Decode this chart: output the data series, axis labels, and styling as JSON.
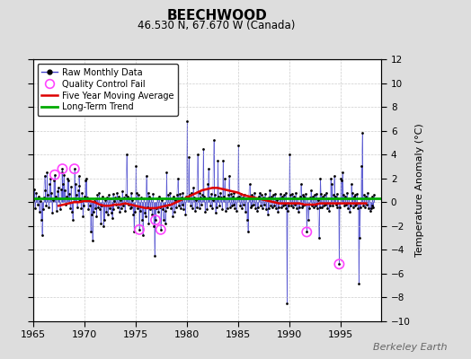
{
  "title": "BEECHWOOD",
  "subtitle": "46.530 N, 67.670 W (Canada)",
  "ylabel": "Temperature Anomaly (°C)",
  "watermark": "Berkeley Earth",
  "xlim": [
    1965,
    1999
  ],
  "ylim": [
    -10,
    12
  ],
  "yticks": [
    -10,
    -8,
    -6,
    -4,
    -2,
    0,
    2,
    4,
    6,
    8,
    10,
    12
  ],
  "xticks": [
    1965,
    1970,
    1975,
    1980,
    1985,
    1990,
    1995
  ],
  "bg_color": "#dddddd",
  "plot_bg_color": "#ffffff",
  "grid_color": "#cccccc",
  "line_color": "#4444cc",
  "ma_color": "#dd0000",
  "trend_color": "#00aa00",
  "dot_color": "#000000",
  "qc_color": "#ff44ff",
  "monthly_data": [
    [
      1965.042,
      0.2
    ],
    [
      1965.125,
      1.1
    ],
    [
      1965.208,
      -0.5
    ],
    [
      1965.292,
      0.8
    ],
    [
      1965.375,
      0.3
    ],
    [
      1965.458,
      -0.2
    ],
    [
      1965.542,
      0.5
    ],
    [
      1965.625,
      -0.8
    ],
    [
      1965.708,
      0.1
    ],
    [
      1965.792,
      -1.5
    ],
    [
      1965.875,
      -2.8
    ],
    [
      1965.958,
      -0.6
    ],
    [
      1966.042,
      0.4
    ],
    [
      1966.125,
      2.2
    ],
    [
      1966.208,
      1.0
    ],
    [
      1966.292,
      -0.3
    ],
    [
      1966.375,
      2.5
    ],
    [
      1966.458,
      0.6
    ],
    [
      1966.542,
      -0.4
    ],
    [
      1966.625,
      1.5
    ],
    [
      1966.708,
      2.0
    ],
    [
      1966.792,
      0.8
    ],
    [
      1966.875,
      -0.9
    ],
    [
      1966.958,
      0.2
    ],
    [
      1967.042,
      1.8
    ],
    [
      1967.125,
      2.3
    ],
    [
      1967.208,
      0.5
    ],
    [
      1967.292,
      -0.7
    ],
    [
      1967.375,
      0.9
    ],
    [
      1967.458,
      1.2
    ],
    [
      1967.542,
      0.3
    ],
    [
      1967.625,
      -0.6
    ],
    [
      1967.708,
      1.1
    ],
    [
      1967.792,
      2.5
    ],
    [
      1967.875,
      2.8
    ],
    [
      1967.958,
      1.5
    ],
    [
      1968.042,
      2.3
    ],
    [
      1968.125,
      1.0
    ],
    [
      1968.208,
      -0.2
    ],
    [
      1968.292,
      0.5
    ],
    [
      1968.375,
      2.0
    ],
    [
      1968.458,
      1.8
    ],
    [
      1968.542,
      0.7
    ],
    [
      1968.625,
      -0.5
    ],
    [
      1968.708,
      1.3
    ],
    [
      1968.792,
      -0.8
    ],
    [
      1968.875,
      -1.5
    ],
    [
      1968.958,
      0.3
    ],
    [
      1969.042,
      2.8
    ],
    [
      1969.125,
      1.5
    ],
    [
      1969.208,
      0.6
    ],
    [
      1969.292,
      -0.4
    ],
    [
      1969.375,
      1.0
    ],
    [
      1969.458,
      2.2
    ],
    [
      1969.542,
      1.4
    ],
    [
      1969.625,
      0.2
    ],
    [
      1969.708,
      -0.5
    ],
    [
      1969.792,
      0.8
    ],
    [
      1969.875,
      -1.2
    ],
    [
      1969.958,
      -0.3
    ],
    [
      1970.042,
      0.5
    ],
    [
      1970.125,
      1.8
    ],
    [
      1970.208,
      2.0
    ],
    [
      1970.292,
      0.4
    ],
    [
      1970.375,
      -0.6
    ],
    [
      1970.458,
      0.2
    ],
    [
      1970.542,
      -0.3
    ],
    [
      1970.625,
      -2.5
    ],
    [
      1970.708,
      -1.0
    ],
    [
      1970.792,
      -3.2
    ],
    [
      1970.875,
      -0.8
    ],
    [
      1970.958,
      0.1
    ],
    [
      1971.042,
      -0.5
    ],
    [
      1971.125,
      0.3
    ],
    [
      1971.208,
      -1.2
    ],
    [
      1971.292,
      0.6
    ],
    [
      1971.375,
      -0.4
    ],
    [
      1971.458,
      0.8
    ],
    [
      1971.542,
      -0.6
    ],
    [
      1971.625,
      -1.8
    ],
    [
      1971.708,
      -0.3
    ],
    [
      1971.792,
      0.5
    ],
    [
      1971.875,
      -2.0
    ],
    [
      1971.958,
      -1.5
    ],
    [
      1972.042,
      0.2
    ],
    [
      1972.125,
      -0.8
    ],
    [
      1972.208,
      0.4
    ],
    [
      1972.292,
      -1.0
    ],
    [
      1972.375,
      0.6
    ],
    [
      1972.458,
      -0.5
    ],
    [
      1972.542,
      0.3
    ],
    [
      1972.625,
      -0.9
    ],
    [
      1972.708,
      -1.3
    ],
    [
      1972.792,
      0.7
    ],
    [
      1972.875,
      -0.6
    ],
    [
      1972.958,
      0.1
    ],
    [
      1973.042,
      0.4
    ],
    [
      1973.125,
      -0.2
    ],
    [
      1973.208,
      0.8
    ],
    [
      1973.292,
      -0.4
    ],
    [
      1973.375,
      0.5
    ],
    [
      1973.458,
      -0.8
    ],
    [
      1973.542,
      0.2
    ],
    [
      1973.625,
      -0.5
    ],
    [
      1973.708,
      0.9
    ],
    [
      1973.792,
      -0.3
    ],
    [
      1973.875,
      0.4
    ],
    [
      1973.958,
      -0.7
    ],
    [
      1974.042,
      0.6
    ],
    [
      1974.125,
      4.0
    ],
    [
      1974.208,
      0.5
    ],
    [
      1974.292,
      -0.2
    ],
    [
      1974.375,
      0.3
    ],
    [
      1974.458,
      -0.5
    ],
    [
      1974.542,
      0.8
    ],
    [
      1974.625,
      -0.4
    ],
    [
      1974.708,
      0.2
    ],
    [
      1974.792,
      -1.0
    ],
    [
      1974.875,
      -2.5
    ],
    [
      1974.958,
      -0.8
    ],
    [
      1975.042,
      3.0
    ],
    [
      1975.125,
      0.8
    ],
    [
      1975.208,
      -0.5
    ],
    [
      1975.292,
      0.6
    ],
    [
      1975.375,
      -2.3
    ],
    [
      1975.458,
      -0.7
    ],
    [
      1975.542,
      0.4
    ],
    [
      1975.625,
      -1.5
    ],
    [
      1975.708,
      -2.8
    ],
    [
      1975.792,
      0.3
    ],
    [
      1975.875,
      -0.9
    ],
    [
      1975.958,
      -1.2
    ],
    [
      1976.042,
      2.2
    ],
    [
      1976.125,
      -0.4
    ],
    [
      1976.208,
      0.8
    ],
    [
      1976.292,
      -1.8
    ],
    [
      1976.375,
      0.5
    ],
    [
      1976.458,
      -0.6
    ],
    [
      1976.542,
      0.3
    ],
    [
      1976.625,
      -1.0
    ],
    [
      1976.708,
      0.7
    ],
    [
      1976.792,
      -2.0
    ],
    [
      1976.875,
      -4.5
    ],
    [
      1976.958,
      -1.5
    ],
    [
      1977.042,
      -0.5
    ],
    [
      1977.125,
      0.3
    ],
    [
      1977.208,
      -0.8
    ],
    [
      1977.292,
      0.5
    ],
    [
      1977.375,
      -0.4
    ],
    [
      1977.458,
      -2.3
    ],
    [
      1977.542,
      0.2
    ],
    [
      1977.625,
      -0.6
    ],
    [
      1977.708,
      -1.5
    ],
    [
      1977.792,
      -0.3
    ],
    [
      1977.875,
      -1.8
    ],
    [
      1977.958,
      -0.7
    ],
    [
      1978.042,
      2.5
    ],
    [
      1978.125,
      -0.4
    ],
    [
      1978.208,
      0.6
    ],
    [
      1978.292,
      -0.2
    ],
    [
      1978.375,
      0.8
    ],
    [
      1978.458,
      -0.5
    ],
    [
      1978.542,
      0.3
    ],
    [
      1978.625,
      -1.2
    ],
    [
      1978.708,
      0.5
    ],
    [
      1978.792,
      -0.8
    ],
    [
      1978.875,
      0.2
    ],
    [
      1978.958,
      -0.4
    ],
    [
      1979.042,
      0.6
    ],
    [
      1979.125,
      2.0
    ],
    [
      1979.208,
      -0.3
    ],
    [
      1979.292,
      0.7
    ],
    [
      1979.375,
      -0.5
    ],
    [
      1979.458,
      0.4
    ],
    [
      1979.542,
      -0.2
    ],
    [
      1979.625,
      0.8
    ],
    [
      1979.708,
      -0.6
    ],
    [
      1979.792,
      0.3
    ],
    [
      1979.875,
      -1.0
    ],
    [
      1979.958,
      0.5
    ],
    [
      1980.042,
      6.8
    ],
    [
      1980.125,
      0.5
    ],
    [
      1980.208,
      3.8
    ],
    [
      1980.292,
      0.6
    ],
    [
      1980.375,
      -0.3
    ],
    [
      1980.458,
      0.8
    ],
    [
      1980.542,
      -0.5
    ],
    [
      1980.625,
      1.2
    ],
    [
      1980.708,
      0.4
    ],
    [
      1980.792,
      -0.7
    ],
    [
      1980.875,
      0.2
    ],
    [
      1980.958,
      -0.4
    ],
    [
      1981.042,
      4.0
    ],
    [
      1981.125,
      0.3
    ],
    [
      1981.208,
      -0.5
    ],
    [
      1981.292,
      0.8
    ],
    [
      1981.375,
      0.4
    ],
    [
      1981.458,
      -0.2
    ],
    [
      1981.542,
      0.6
    ],
    [
      1981.625,
      4.5
    ],
    [
      1981.708,
      0.5
    ],
    [
      1981.792,
      -0.8
    ],
    [
      1981.875,
      0.3
    ],
    [
      1981.958,
      -0.6
    ],
    [
      1982.042,
      1.5
    ],
    [
      1982.125,
      2.8
    ],
    [
      1982.208,
      0.4
    ],
    [
      1982.292,
      -0.3
    ],
    [
      1982.375,
      0.7
    ],
    [
      1982.458,
      -0.5
    ],
    [
      1982.542,
      0.2
    ],
    [
      1982.625,
      5.2
    ],
    [
      1982.708,
      0.6
    ],
    [
      1982.792,
      -0.9
    ],
    [
      1982.875,
      0.3
    ],
    [
      1982.958,
      -0.4
    ],
    [
      1983.042,
      3.5
    ],
    [
      1983.125,
      0.5
    ],
    [
      1983.208,
      -0.3
    ],
    [
      1983.292,
      0.8
    ],
    [
      1983.375,
      0.4
    ],
    [
      1983.458,
      -0.6
    ],
    [
      1983.542,
      3.5
    ],
    [
      1983.625,
      0.5
    ],
    [
      1983.708,
      2.0
    ],
    [
      1983.792,
      -0.7
    ],
    [
      1983.875,
      0.3
    ],
    [
      1983.958,
      -0.5
    ],
    [
      1984.042,
      0.6
    ],
    [
      1984.125,
      2.2
    ],
    [
      1984.208,
      -0.4
    ],
    [
      1984.292,
      0.7
    ],
    [
      1984.375,
      -0.3
    ],
    [
      1984.458,
      0.5
    ],
    [
      1984.542,
      -0.2
    ],
    [
      1984.625,
      0.8
    ],
    [
      1984.708,
      -0.5
    ],
    [
      1984.792,
      0.3
    ],
    [
      1984.875,
      -0.7
    ],
    [
      1984.958,
      0.4
    ],
    [
      1985.042,
      4.8
    ],
    [
      1985.125,
      0.5
    ],
    [
      1985.208,
      -0.3
    ],
    [
      1985.292,
      0.7
    ],
    [
      1985.375,
      -0.5
    ],
    [
      1985.458,
      0.4
    ],
    [
      1985.542,
      -0.2
    ],
    [
      1985.625,
      0.6
    ],
    [
      1985.708,
      -0.8
    ],
    [
      1985.792,
      0.3
    ],
    [
      1985.875,
      -1.5
    ],
    [
      1985.958,
      -2.5
    ],
    [
      1986.042,
      0.5
    ],
    [
      1986.125,
      1.5
    ],
    [
      1986.208,
      -0.4
    ],
    [
      1986.292,
      0.6
    ],
    [
      1986.375,
      -0.3
    ],
    [
      1986.458,
      0.5
    ],
    [
      1986.542,
      -0.2
    ],
    [
      1986.625,
      0.8
    ],
    [
      1986.708,
      -0.5
    ],
    [
      1986.792,
      0.3
    ],
    [
      1986.875,
      -0.7
    ],
    [
      1986.958,
      -0.4
    ],
    [
      1987.042,
      0.5
    ],
    [
      1987.125,
      0.8
    ],
    [
      1987.208,
      -0.3
    ],
    [
      1987.292,
      0.6
    ],
    [
      1987.375,
      -0.5
    ],
    [
      1987.458,
      0.4
    ],
    [
      1987.542,
      -0.2
    ],
    [
      1987.625,
      0.7
    ],
    [
      1987.708,
      -0.6
    ],
    [
      1987.792,
      0.3
    ],
    [
      1987.875,
      -1.0
    ],
    [
      1987.958,
      -0.5
    ],
    [
      1988.042,
      0.4
    ],
    [
      1988.125,
      1.0
    ],
    [
      1988.208,
      -0.3
    ],
    [
      1988.292,
      0.5
    ],
    [
      1988.375,
      -0.4
    ],
    [
      1988.458,
      0.6
    ],
    [
      1988.542,
      -0.3
    ],
    [
      1988.625,
      0.7
    ],
    [
      1988.708,
      -0.5
    ],
    [
      1988.792,
      0.2
    ],
    [
      1988.875,
      -0.8
    ],
    [
      1988.958,
      -0.4
    ],
    [
      1989.042,
      0.3
    ],
    [
      1989.125,
      0.7
    ],
    [
      1989.208,
      -0.4
    ],
    [
      1989.292,
      0.5
    ],
    [
      1989.375,
      -0.3
    ],
    [
      1989.458,
      0.6
    ],
    [
      1989.542,
      -0.2
    ],
    [
      1989.625,
      0.8
    ],
    [
      1989.708,
      -0.5
    ],
    [
      1989.792,
      -8.5
    ],
    [
      1989.875,
      -0.7
    ],
    [
      1989.958,
      -0.3
    ],
    [
      1990.042,
      4.0
    ],
    [
      1990.125,
      0.6
    ],
    [
      1990.208,
      -0.3
    ],
    [
      1990.292,
      0.7
    ],
    [
      1990.375,
      -0.4
    ],
    [
      1990.458,
      0.5
    ],
    [
      1990.542,
      -0.2
    ],
    [
      1990.625,
      0.8
    ],
    [
      1990.708,
      -0.5
    ],
    [
      1990.792,
      0.3
    ],
    [
      1990.875,
      -0.8
    ],
    [
      1990.958,
      -0.4
    ],
    [
      1991.042,
      0.5
    ],
    [
      1991.125,
      1.5
    ],
    [
      1991.208,
      -0.4
    ],
    [
      1991.292,
      0.6
    ],
    [
      1991.375,
      -0.3
    ],
    [
      1991.458,
      0.5
    ],
    [
      1991.542,
      -0.2
    ],
    [
      1991.625,
      0.7
    ],
    [
      1991.708,
      -2.5
    ],
    [
      1991.792,
      0.3
    ],
    [
      1991.875,
      -1.5
    ],
    [
      1991.958,
      -0.5
    ],
    [
      1992.042,
      0.4
    ],
    [
      1992.125,
      1.0
    ],
    [
      1992.208,
      -0.3
    ],
    [
      1992.292,
      0.5
    ],
    [
      1992.375,
      -0.4
    ],
    [
      1992.458,
      0.6
    ],
    [
      1992.542,
      -0.3
    ],
    [
      1992.625,
      0.7
    ],
    [
      1992.708,
      -0.5
    ],
    [
      1992.792,
      0.2
    ],
    [
      1992.875,
      -3.0
    ],
    [
      1992.958,
      -0.4
    ],
    [
      1993.042,
      2.0
    ],
    [
      1993.125,
      0.7
    ],
    [
      1993.208,
      -0.4
    ],
    [
      1993.292,
      0.5
    ],
    [
      1993.375,
      -0.3
    ],
    [
      1993.458,
      0.6
    ],
    [
      1993.542,
      -0.2
    ],
    [
      1993.625,
      0.8
    ],
    [
      1993.708,
      -0.5
    ],
    [
      1993.792,
      0.3
    ],
    [
      1993.875,
      -0.7
    ],
    [
      1993.958,
      -0.3
    ],
    [
      1994.042,
      2.0
    ],
    [
      1994.125,
      1.5
    ],
    [
      1994.208,
      -0.3
    ],
    [
      1994.292,
      0.6
    ],
    [
      1994.375,
      2.2
    ],
    [
      1994.458,
      0.5
    ],
    [
      1994.542,
      -0.2
    ],
    [
      1994.625,
      0.7
    ],
    [
      1994.708,
      -0.4
    ],
    [
      1994.792,
      0.3
    ],
    [
      1994.875,
      -5.2
    ],
    [
      1994.958,
      -0.4
    ],
    [
      1995.042,
      2.0
    ],
    [
      1995.125,
      1.8
    ],
    [
      1995.208,
      2.5
    ],
    [
      1995.292,
      0.6
    ],
    [
      1995.375,
      -0.3
    ],
    [
      1995.458,
      0.5
    ],
    [
      1995.542,
      -0.2
    ],
    [
      1995.625,
      0.8
    ],
    [
      1995.708,
      -0.5
    ],
    [
      1995.792,
      0.3
    ],
    [
      1995.875,
      -0.8
    ],
    [
      1995.958,
      -0.3
    ],
    [
      1996.042,
      1.5
    ],
    [
      1996.125,
      0.8
    ],
    [
      1996.208,
      -0.4
    ],
    [
      1996.292,
      0.5
    ],
    [
      1996.375,
      -0.3
    ],
    [
      1996.458,
      0.6
    ],
    [
      1996.542,
      -0.2
    ],
    [
      1996.625,
      0.7
    ],
    [
      1996.708,
      -0.5
    ],
    [
      1996.792,
      -6.8
    ],
    [
      1996.875,
      -3.0
    ],
    [
      1996.958,
      -0.4
    ],
    [
      1997.042,
      3.0
    ],
    [
      1997.125,
      5.8
    ],
    [
      1997.208,
      -0.3
    ],
    [
      1997.292,
      0.6
    ],
    [
      1997.375,
      -0.4
    ],
    [
      1997.458,
      0.5
    ],
    [
      1997.542,
      -0.2
    ],
    [
      1997.625,
      0.8
    ],
    [
      1997.708,
      -0.5
    ],
    [
      1997.792,
      0.3
    ],
    [
      1997.875,
      -0.7
    ],
    [
      1997.958,
      -0.5
    ],
    [
      1998.042,
      -0.3
    ],
    [
      1998.125,
      0.5
    ],
    [
      1998.208,
      -0.4
    ],
    [
      1998.292,
      0.6
    ]
  ],
  "qc_fail_points": [
    [
      1967.125,
      2.3
    ],
    [
      1967.875,
      2.8
    ],
    [
      1969.042,
      2.8
    ],
    [
      1975.375,
      -2.3
    ],
    [
      1976.958,
      -1.5
    ],
    [
      1977.458,
      -2.3
    ],
    [
      1991.708,
      -2.5
    ],
    [
      1994.875,
      -5.2
    ]
  ],
  "moving_avg": [
    [
      1967.5,
      -0.3
    ],
    [
      1968.0,
      -0.2
    ],
    [
      1968.5,
      -0.1
    ],
    [
      1969.0,
      0.0
    ],
    [
      1969.5,
      0.0
    ],
    [
      1970.0,
      0.1
    ],
    [
      1970.5,
      0.1
    ],
    [
      1971.0,
      0.0
    ],
    [
      1971.5,
      -0.2
    ],
    [
      1972.0,
      -0.3
    ],
    [
      1972.5,
      -0.3
    ],
    [
      1973.0,
      -0.2
    ],
    [
      1973.5,
      -0.2
    ],
    [
      1974.0,
      -0.1
    ],
    [
      1974.5,
      -0.2
    ],
    [
      1975.0,
      -0.3
    ],
    [
      1975.5,
      -0.4
    ],
    [
      1976.0,
      -0.5
    ],
    [
      1976.5,
      -0.5
    ],
    [
      1977.0,
      -0.5
    ],
    [
      1977.5,
      -0.4
    ],
    [
      1978.0,
      -0.3
    ],
    [
      1978.5,
      -0.2
    ],
    [
      1979.0,
      0.0
    ],
    [
      1979.5,
      0.2
    ],
    [
      1980.0,
      0.4
    ],
    [
      1980.5,
      0.6
    ],
    [
      1981.0,
      0.8
    ],
    [
      1981.5,
      1.0
    ],
    [
      1982.0,
      1.1
    ],
    [
      1982.5,
      1.2
    ],
    [
      1983.0,
      1.2
    ],
    [
      1983.5,
      1.1
    ],
    [
      1984.0,
      1.0
    ],
    [
      1984.5,
      0.9
    ],
    [
      1985.0,
      0.8
    ],
    [
      1985.5,
      0.6
    ],
    [
      1986.0,
      0.5
    ],
    [
      1986.5,
      0.4
    ],
    [
      1987.0,
      0.3
    ],
    [
      1987.5,
      0.2
    ],
    [
      1988.0,
      0.1
    ],
    [
      1988.5,
      0.0
    ],
    [
      1989.0,
      -0.1
    ],
    [
      1989.5,
      -0.1
    ],
    [
      1990.0,
      -0.1
    ],
    [
      1990.5,
      -0.1
    ],
    [
      1991.0,
      -0.1
    ],
    [
      1991.5,
      -0.2
    ],
    [
      1992.0,
      -0.2
    ],
    [
      1992.5,
      -0.2
    ],
    [
      1993.0,
      -0.1
    ],
    [
      1993.5,
      -0.1
    ],
    [
      1994.0,
      -0.1
    ],
    [
      1994.5,
      -0.1
    ],
    [
      1995.0,
      -0.1
    ],
    [
      1995.5,
      -0.1
    ],
    [
      1996.0,
      -0.1
    ],
    [
      1996.5,
      -0.1
    ],
    [
      1997.0,
      -0.1
    ],
    [
      1997.5,
      -0.1
    ]
  ],
  "trend_y": 0.3
}
